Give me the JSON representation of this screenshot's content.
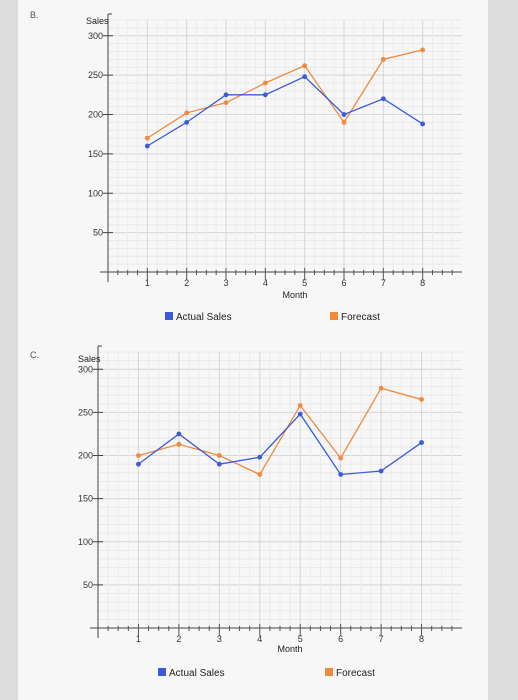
{
  "chart_data": [
    {
      "panel_label": "B.",
      "type": "line",
      "xlabel": "Month",
      "ylabel": "Sales",
      "x": [
        1,
        2,
        3,
        4,
        5,
        6,
        7,
        8
      ],
      "x_tick_labels": [
        "1",
        "2",
        "3",
        "4",
        "5",
        "6",
        "7",
        "8"
      ],
      "y_tick_labels": [
        "50",
        "100",
        "150",
        "200",
        "250",
        "300"
      ],
      "y_ticks": [
        50,
        100,
        150,
        200,
        250,
        300
      ],
      "ylim": [
        0,
        320
      ],
      "grid": true,
      "legend_placement": "bottom",
      "series": [
        {
          "name": "Actual Sales",
          "color": "#3b5bdb",
          "values": [
            160,
            190,
            225,
            225,
            248,
            200,
            220,
            188
          ]
        },
        {
          "name": "Forecast",
          "color": "#f08a3c",
          "values": [
            170,
            202,
            215,
            240,
            262,
            190,
            270,
            282
          ]
        }
      ]
    },
    {
      "panel_label": "C.",
      "type": "line",
      "xlabel": "Month",
      "ylabel": "Sales",
      "x": [
        1,
        2,
        3,
        4,
        5,
        6,
        7,
        8
      ],
      "x_tick_labels": [
        "1",
        "2",
        "3",
        "4",
        "5",
        "6",
        "7",
        "8"
      ],
      "y_tick_labels": [
        "50",
        "100",
        "150",
        "200",
        "250",
        "300"
      ],
      "y_ticks": [
        50,
        100,
        150,
        200,
        250,
        300
      ],
      "ylim": [
        0,
        320
      ],
      "grid": true,
      "legend_placement": "bottom",
      "series": [
        {
          "name": "Actual Sales",
          "color": "#3b5bdb",
          "values": [
            190,
            225,
            190,
            198,
            248,
            178,
            182,
            215
          ]
        },
        {
          "name": "Forecast",
          "color": "#f08a3c",
          "values": [
            200,
            213,
            200,
            178,
            258,
            197,
            278,
            265
          ]
        }
      ]
    }
  ]
}
